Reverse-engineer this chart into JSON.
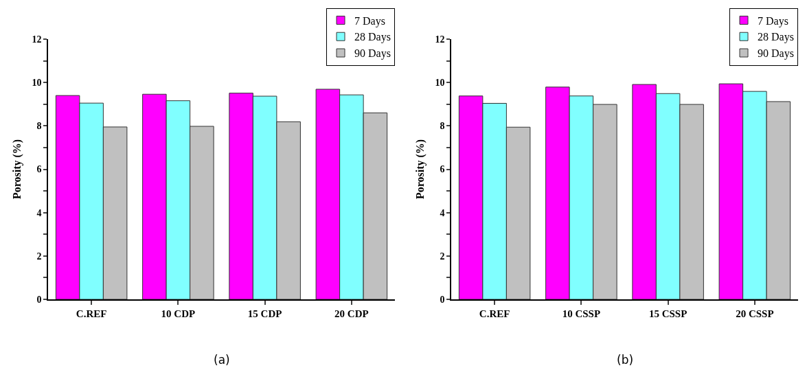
{
  "chart_data": [
    {
      "type": "bar",
      "ylabel": "Porosity (%)",
      "categories": [
        "C.REF",
        "10 CDP",
        "15 CDP",
        "20 CDP"
      ],
      "series": [
        {
          "name": "7 Days",
          "color": "#ff00ff",
          "values": [
            9.4,
            9.46,
            9.51,
            9.69
          ]
        },
        {
          "name": "28 Days",
          "color": "#80ffff",
          "values": [
            9.05,
            9.16,
            9.37,
            9.43
          ]
        },
        {
          "name": "90 Days",
          "color": "#c0c0c0",
          "values": [
            7.95,
            7.98,
            8.19,
            8.6
          ]
        }
      ],
      "ylim": [
        0,
        12
      ],
      "yticks": [
        0,
        {
          "value": 1,
          "label": null
        },
        2,
        {
          "value": 3,
          "label": null
        },
        4,
        {
          "value": 5,
          "label": null
        },
        6,
        {
          "value": 7,
          "label": null
        },
        8,
        {
          "value": 9,
          "label": null
        },
        10,
        {
          "value": 11,
          "label": null
        },
        12
      ],
      "grid": false,
      "legend": "top right",
      "annotations": [
        "(a)"
      ]
    },
    {
      "type": "bar",
      "ylabel": "Porosity (%)",
      "categories": [
        "C.REF",
        "10 CSSP",
        "15 CSSP",
        "20 CSSP"
      ],
      "series": [
        {
          "name": "7 Days",
          "color": "#ff00ff",
          "values": [
            9.38,
            9.79,
            9.91,
            9.94
          ]
        },
        {
          "name": "28 Days",
          "color": "#80ffff",
          "values": [
            9.04,
            9.38,
            9.49,
            9.59
          ]
        },
        {
          "name": "90 Days",
          "color": "#c0c0c0",
          "values": [
            7.94,
            8.99,
            8.99,
            9.12
          ]
        }
      ],
      "ylim": [
        0,
        12
      ],
      "yticks": [
        0,
        {
          "value": 1,
          "label": null
        },
        2,
        {
          "value": 3,
          "label": null
        },
        4,
        {
          "value": 5,
          "label": null
        },
        6,
        {
          "value": 7,
          "label": null
        },
        8,
        {
          "value": 9,
          "label": null
        },
        10,
        {
          "value": 11,
          "label": null
        },
        12
      ],
      "grid": false,
      "legend": "top right",
      "annotations": [
        "(b)"
      ]
    }
  ]
}
